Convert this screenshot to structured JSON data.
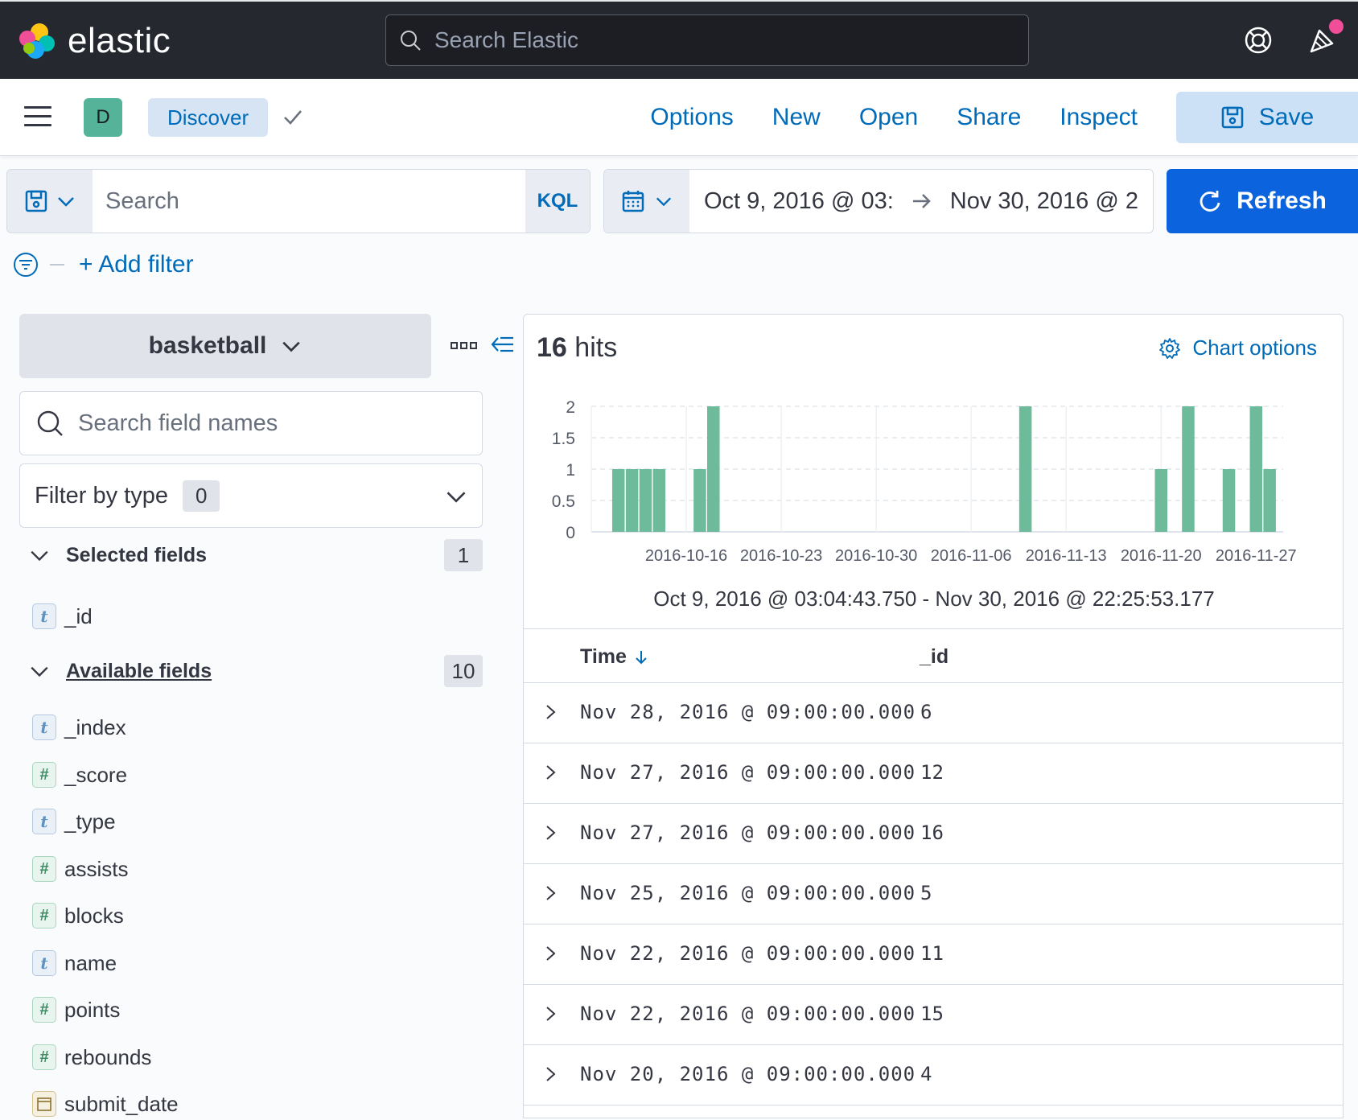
{
  "header": {
    "logo_text": "elastic",
    "search_placeholder": "Search Elastic"
  },
  "appbar": {
    "space_initial": "D",
    "breadcrumb": "Discover",
    "links": [
      "Options",
      "New",
      "Open",
      "Share",
      "Inspect"
    ],
    "save_label": "Save"
  },
  "query": {
    "placeholder": "Search",
    "language": "KQL",
    "date_start": "Oct 9, 2016 @ 03:",
    "date_end": "Nov 30, 2016 @ 2",
    "refresh_label": "Refresh",
    "add_filter_label": "+ Add filter"
  },
  "sidebar": {
    "index_pattern": "basketball",
    "field_search_placeholder": "Search field names",
    "filter_by_type_label": "Filter by type",
    "filter_by_type_count": "0",
    "selected_title": "Selected fields",
    "selected_count": "1",
    "selected_fields": [
      {
        "type": "t",
        "name": "_id"
      }
    ],
    "available_title": "Available fields",
    "available_count": "10",
    "available_fields": [
      {
        "type": "t",
        "name": "_index"
      },
      {
        "type": "#",
        "name": "_score"
      },
      {
        "type": "t",
        "name": "_type"
      },
      {
        "type": "#",
        "name": "assists"
      },
      {
        "type": "#",
        "name": "blocks"
      },
      {
        "type": "t",
        "name": "name"
      },
      {
        "type": "#",
        "name": "points"
      },
      {
        "type": "#",
        "name": "rebounds"
      },
      {
        "type": "date",
        "name": "submit_date"
      }
    ]
  },
  "results": {
    "hits_count": "16",
    "hits_label": "hits",
    "chart_options_label": "Chart options",
    "range_label": "Oct 9, 2016 @ 03:04:43.750 - Nov 30, 2016 @ 22:25:53.177",
    "columns": [
      "Time",
      "_id"
    ],
    "rows": [
      {
        "time": "Nov 28, 2016 @ 09:00:00.000",
        "id": "6"
      },
      {
        "time": "Nov 27, 2016 @ 09:00:00.000",
        "id": "12"
      },
      {
        "time": "Nov 27, 2016 @ 09:00:00.000",
        "id": "16"
      },
      {
        "time": "Nov 25, 2016 @ 09:00:00.000",
        "id": "5"
      },
      {
        "time": "Nov 22, 2016 @ 09:00:00.000",
        "id": "11"
      },
      {
        "time": "Nov 22, 2016 @ 09:00:00.000",
        "id": "15"
      },
      {
        "time": "Nov 20, 2016 @ 09:00:00.000",
        "id": "4"
      }
    ]
  },
  "chart_data": {
    "type": "bar",
    "bar_color": "#6dbb9a",
    "x_ticks": [
      "2016-10-16",
      "2016-10-23",
      "2016-10-30",
      "2016-11-06",
      "2016-11-13",
      "2016-11-20",
      "2016-11-27"
    ],
    "y_ticks": [
      "2",
      "1.5",
      "1",
      "0.5",
      "0"
    ],
    "ylim": [
      0,
      2
    ],
    "bars": [
      {
        "date": "2016-10-11",
        "count": 1
      },
      {
        "date": "2016-10-12",
        "count": 1
      },
      {
        "date": "2016-10-13",
        "count": 1
      },
      {
        "date": "2016-10-14",
        "count": 1
      },
      {
        "date": "2016-10-17",
        "count": 1
      },
      {
        "date": "2016-10-18",
        "count": 2
      },
      {
        "date": "2016-11-10",
        "count": 2
      },
      {
        "date": "2016-11-20",
        "count": 1
      },
      {
        "date": "2016-11-22",
        "count": 2
      },
      {
        "date": "2016-11-25",
        "count": 1
      },
      {
        "date": "2016-11-27",
        "count": 2
      },
      {
        "date": "2016-11-28",
        "count": 1
      }
    ]
  }
}
